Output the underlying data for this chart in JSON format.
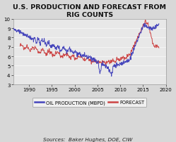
{
  "title": "U.S. PRODUCTION AND FORECAST FROM\nRIG COUNTS",
  "source_text": "Sources:  Baker Hughes, DOE, CIW",
  "legend_labels": [
    "OIL PRODUCTION (MBPD)",
    "FORECAST"
  ],
  "legend_colors": [
    "#4444bb",
    "#cc4444"
  ],
  "ylim": [
    3,
    10
  ],
  "yticks": [
    3,
    4,
    5,
    6,
    7,
    8,
    9,
    10
  ],
  "xlim": [
    1986.5,
    2020
  ],
  "xticks": [
    1990,
    1995,
    2000,
    2005,
    2010,
    2015,
    2020
  ],
  "bg_color": "#d8d8d8",
  "plot_bg_color": "#e8e8e8",
  "title_fontsize": 6.8,
  "tick_fontsize": 5.0,
  "source_fontsize": 5.2,
  "legend_fontsize": 4.8,
  "line_width": 0.7
}
